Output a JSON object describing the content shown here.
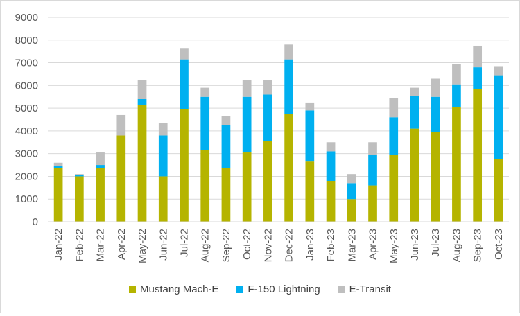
{
  "chart_data": {
    "type": "bar",
    "stacked": true,
    "title": "",
    "xlabel": "",
    "ylabel": "",
    "ylim": [
      0,
      9000
    ],
    "yticks": [
      0,
      1000,
      2000,
      3000,
      4000,
      5000,
      6000,
      7000,
      8000,
      9000
    ],
    "grid": true,
    "legend_position": "bottom",
    "categories": [
      "Jan-22",
      "Feb-22",
      "Mar-22",
      "Apr-22",
      "May-22",
      "Jun-22",
      "Jul-22",
      "Aug-22",
      "Sep-22",
      "Oct-22",
      "Nov-22",
      "Dec-22",
      "Jan-23",
      "Feb-23",
      "Mar-23",
      "Apr-23",
      "May-23",
      "Jun-23",
      "Jul-23",
      "Aug-23",
      "Sep-23",
      "Oct-23"
    ],
    "series": [
      {
        "name": "Mustang Mach-E",
        "color": "#b5b400",
        "values": [
          2350,
          2000,
          2350,
          3800,
          5150,
          2000,
          4950,
          3150,
          2350,
          3050,
          3550,
          4750,
          2650,
          1800,
          1000,
          1600,
          2950,
          4100,
          3950,
          5050,
          5850,
          2750
        ]
      },
      {
        "name": "F-150 Lightning",
        "color": "#00b0f0",
        "values": [
          100,
          50,
          150,
          0,
          250,
          1800,
          2200,
          2350,
          1900,
          2450,
          2050,
          2400,
          2250,
          1300,
          700,
          1350,
          1650,
          1450,
          1550,
          1000,
          950,
          3700
        ]
      },
      {
        "name": "E-Transit",
        "color": "#bfbfbf",
        "values": [
          150,
          50,
          550,
          900,
          850,
          550,
          500,
          400,
          400,
          750,
          650,
          650,
          350,
          400,
          400,
          550,
          850,
          350,
          800,
          900,
          950,
          400
        ]
      }
    ]
  }
}
